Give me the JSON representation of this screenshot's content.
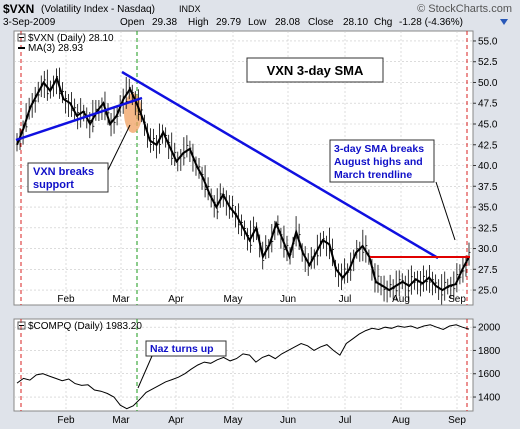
{
  "header": {
    "symbol": "$VXN",
    "description": "(Volatility Index - Nasdaq)",
    "exchange": "INDX",
    "source": "© StockCharts.com",
    "date": "3-Sep-2009",
    "open_label": "Open",
    "open": "29.38",
    "high_label": "High",
    "high": "29.79",
    "low_label": "Low",
    "low": "28.08",
    "close_label": "Close",
    "close": "28.10",
    "chg_label": "Chg",
    "chg": "-1.28 (-4.36%)"
  },
  "colors": {
    "background": "#dfe3ea",
    "plot_bg": "#ffffff",
    "grid": "#c8c8c8",
    "price_line": "#000000",
    "sma_line": "#000000",
    "trendline": "#1010e0",
    "horizontal_line": "#e00000",
    "vline_red": "#d82020",
    "vline_green": "#1a9a1a",
    "highlight": "#f0a060",
    "annotation_text": "#1010c8"
  },
  "chart_data": [
    {
      "type": "line",
      "panel": "upper",
      "series": [
        {
          "name": "$VXN (Daily) 28.10",
          "style": "bars"
        },
        {
          "name": "MA(3) 28.93",
          "style": "line"
        }
      ],
      "legend": {
        "items": [
          "$VXN (Daily) 28.10",
          "MA(3) 28.93"
        ],
        "placement": "top-left"
      },
      "x_ticks": [
        "Feb",
        "Mar",
        "Apr",
        "May",
        "Jun",
        "Jul",
        "Aug",
        "Sep"
      ],
      "y_ticks": [
        25.0,
        27.5,
        30.0,
        32.5,
        35.0,
        37.5,
        40.0,
        42.5,
        45.0,
        47.5,
        50.0,
        52.5,
        55.0
      ],
      "ylim": [
        23.2,
        56.2
      ],
      "sma_values": [
        42.5,
        44.5,
        47.0,
        48.5,
        50.0,
        49.0,
        50.5,
        48.0,
        47.5,
        46.0,
        46.5,
        45.0,
        46.5,
        47.5,
        45.0,
        46.0,
        48.0,
        49.2,
        47.5,
        45.5,
        43.0,
        42.5,
        44.0,
        42.2,
        40.5,
        41.5,
        42.0,
        40.0,
        38.5,
        36.5,
        35.0,
        36.5,
        35.0,
        34.0,
        32.5,
        31.0,
        32.5,
        29.0,
        30.5,
        33.0,
        31.0,
        29.0,
        32.0,
        29.5,
        28.0,
        29.5,
        31.0,
        30.5,
        27.5,
        26.5,
        27.5,
        29.5,
        30.3,
        29.0,
        26.0,
        25.5,
        25.0,
        25.5,
        26.0,
        25.5,
        26.3,
        25.8,
        26.5,
        25.5,
        25.0,
        25.5,
        25.7,
        27.5,
        29.0
      ],
      "annotations": [
        {
          "text": "VXN 3-day SMA"
        },
        {
          "text": "VXN breaks support"
        },
        {
          "text": "3-day SMA breaks August highs and March trendline"
        }
      ]
    },
    {
      "type": "line",
      "panel": "lower",
      "series": [
        {
          "name": "$COMPQ (Daily) 1983.20",
          "values": [
            1520,
            1560,
            1545,
            1590,
            1600,
            1580,
            1560,
            1540,
            1555,
            1515,
            1500,
            1505,
            1460,
            1450,
            1430,
            1400,
            1330,
            1300,
            1325,
            1380,
            1440,
            1470,
            1500,
            1530,
            1550,
            1570,
            1600,
            1640,
            1675,
            1700,
            1690,
            1720,
            1740,
            1710,
            1730,
            1770,
            1760,
            1700,
            1740,
            1760,
            1730,
            1770,
            1800,
            1830,
            1860,
            1840,
            1800,
            1830,
            1850,
            1800,
            1760,
            1860,
            1900,
            1940,
            1970,
            1990,
            1980,
            2000,
            1990,
            2010,
            2000,
            2010,
            1990,
            2010,
            2020,
            2000,
            1980,
            2010,
            2020,
            2000,
            1983
          ]
        }
      ],
      "legend": {
        "items": [
          "$COMPQ (Daily) 1983.20"
        ],
        "placement": "top-left"
      },
      "x_ticks": [
        "Feb",
        "Mar",
        "Apr",
        "May",
        "Jun",
        "Jul",
        "Aug",
        "Sep"
      ],
      "y_ticks": [
        1400,
        1600,
        1800,
        2000
      ],
      "ylim": [
        1280,
        2070
      ],
      "annotations": [
        {
          "text": "Naz turns up"
        }
      ]
    }
  ]
}
